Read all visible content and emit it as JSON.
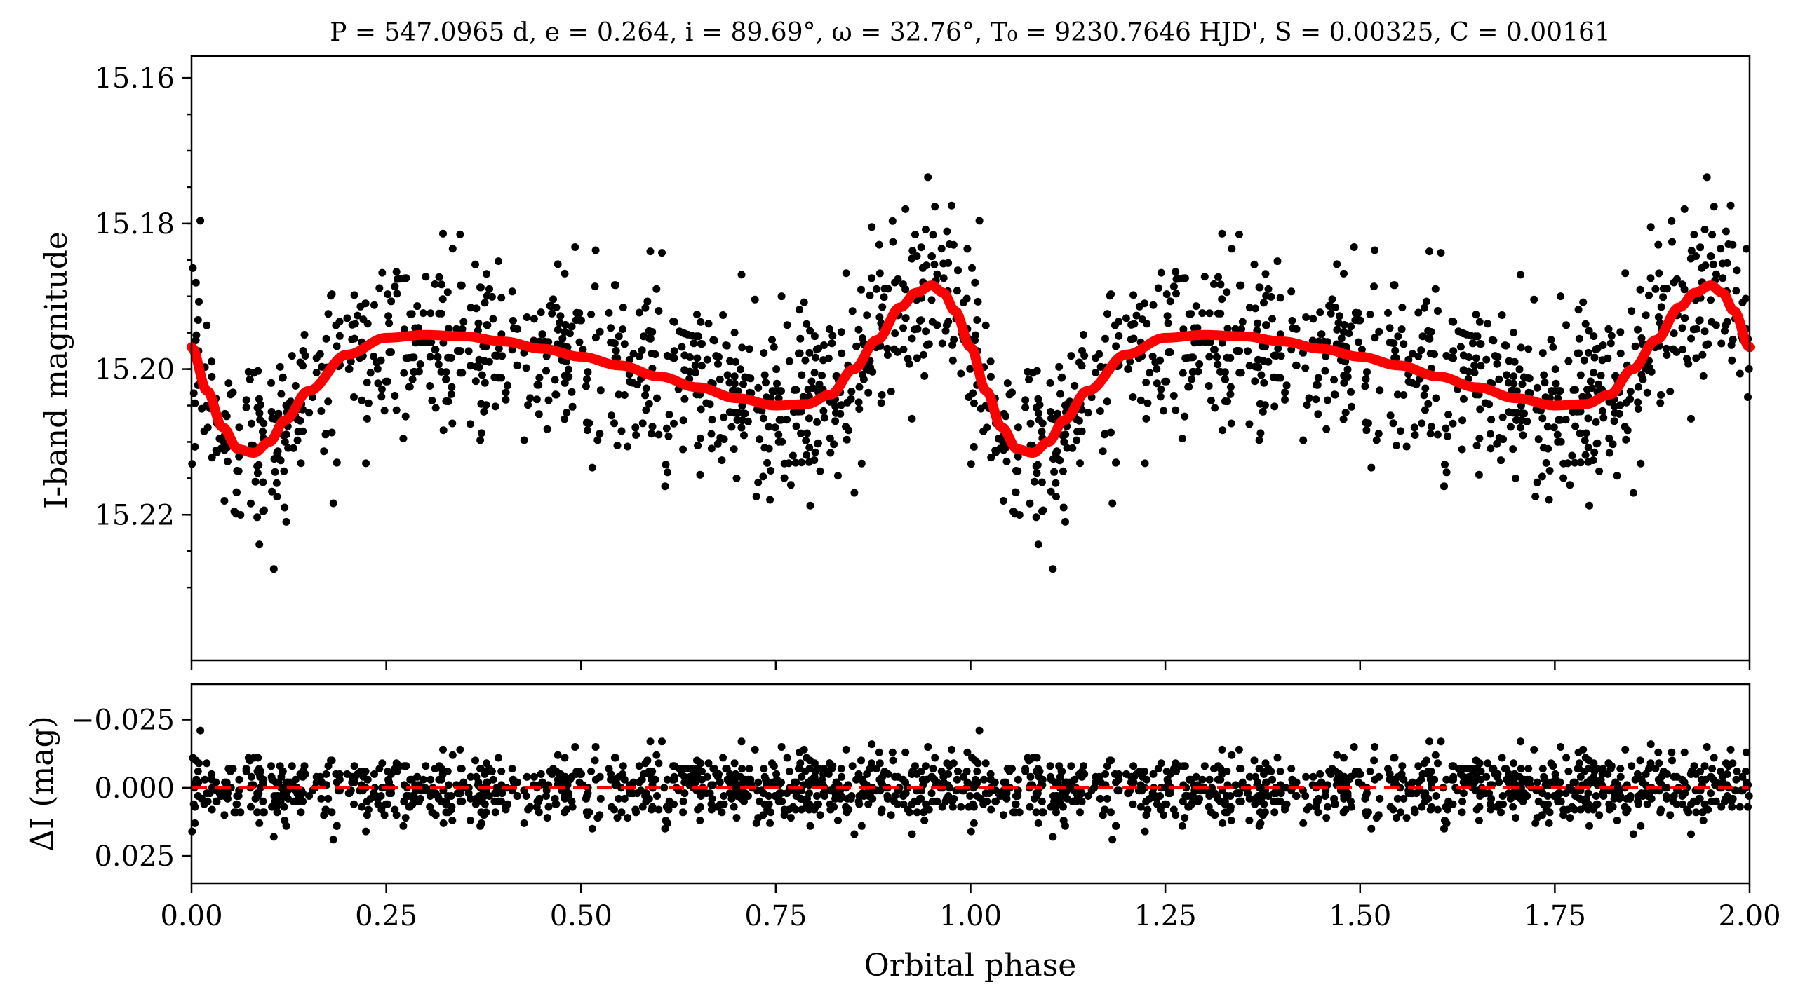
{
  "chart_data": [
    {
      "panel": "top",
      "type": "scatter",
      "title": "P = 547.0965 d, e = 0.264, i = 89.69°, ω = 32.76°, T₀ = 9230.7646 HJD', S = 0.00325, C = 0.00161",
      "xlabel": "",
      "ylabel": "I-band magnitude",
      "xlim": [
        0.0,
        2.0
      ],
      "ylim": [
        15.24,
        15.157
      ],
      "y_inverted": true,
      "yticks": [
        "15.16",
        "15.18",
        "15.20",
        "15.22"
      ],
      "grid": false,
      "colors": {
        "points": "#000000",
        "model": "#ff0000"
      },
      "model_curve": {
        "x": [
          0.0,
          0.02,
          0.04,
          0.06,
          0.08,
          0.1,
          0.12,
          0.15,
          0.2,
          0.25,
          0.3,
          0.35,
          0.4,
          0.45,
          0.5,
          0.55,
          0.6,
          0.65,
          0.7,
          0.75,
          0.79,
          0.82,
          0.85,
          0.88,
          0.91,
          0.93,
          0.95,
          0.965,
          0.98,
          1.0,
          1.02,
          1.04,
          1.06,
          1.08,
          1.1,
          1.12,
          1.15,
          1.2,
          1.25,
          1.3,
          1.35,
          1.4,
          1.45,
          1.5,
          1.55,
          1.6,
          1.65,
          1.7,
          1.75,
          1.79,
          1.82,
          1.85,
          1.88,
          1.91,
          1.93,
          1.95,
          1.965,
          1.98,
          2.0
        ],
        "y": [
          15.197,
          15.203,
          15.208,
          15.211,
          15.2115,
          15.21,
          15.207,
          15.203,
          15.198,
          15.1957,
          15.1953,
          15.1955,
          15.1962,
          15.1972,
          15.1983,
          15.1995,
          15.201,
          15.2025,
          15.204,
          15.205,
          15.2048,
          15.2035,
          15.2,
          15.196,
          15.1915,
          15.1895,
          15.1885,
          15.1895,
          15.192,
          15.197,
          15.203,
          15.208,
          15.211,
          15.2115,
          15.21,
          15.207,
          15.203,
          15.198,
          15.1957,
          15.1953,
          15.1955,
          15.1962,
          15.1972,
          15.1983,
          15.1995,
          15.201,
          15.2025,
          15.204,
          15.205,
          15.2048,
          15.2035,
          15.2,
          15.196,
          15.1915,
          15.1895,
          15.1885,
          15.1895,
          15.192,
          15.197
        ]
      },
      "observations": "≈900 photometric points per cycle, scattered with ~0.006 mag rms around the model curve, repeated at phase and phase+1"
    },
    {
      "panel": "bottom",
      "type": "scatter",
      "xlabel": "Orbital phase",
      "ylabel": "ΔI (mag)",
      "xlim": [
        0.0,
        2.0
      ],
      "ylim": [
        0.035,
        -0.038
      ],
      "y_inverted": true,
      "xticks": [
        "0.00",
        "0.25",
        "0.50",
        "0.75",
        "1.00",
        "1.25",
        "1.50",
        "1.75",
        "2.00"
      ],
      "yticks": [
        "−0.025",
        "0.000",
        "0.025"
      ],
      "reference_line": {
        "y": 0.0,
        "style": "dashed",
        "color": "#ff0000"
      },
      "residual_scatter_rms": 0.006,
      "grid": false
    }
  ]
}
